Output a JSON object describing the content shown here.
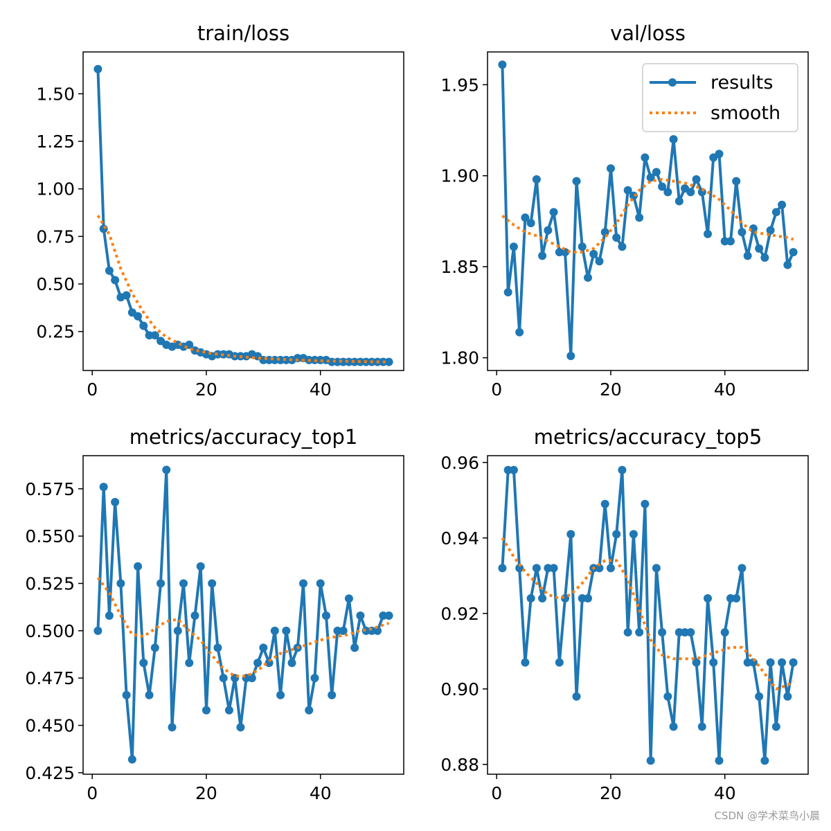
{
  "colors": {
    "results": "#1f77b4",
    "smooth": "#ff7f0e"
  },
  "legend": {
    "results": "results",
    "smooth": "smooth"
  },
  "watermark": "CSDN @学术菜鸟小晨",
  "chart_data": [
    {
      "type": "line",
      "title": "train/loss",
      "xlim": [
        -1.6,
        54.6
      ],
      "ylim": [
        0.045,
        1.72
      ],
      "xticks": [
        0,
        20,
        40
      ],
      "yticks": [
        0.25,
        0.5,
        0.75,
        1.0,
        1.25,
        1.5
      ],
      "ytick_labels": [
        "0.25",
        "0.50",
        "0.75",
        "1.00",
        "1.25",
        "1.50"
      ],
      "legend": false,
      "series": [
        {
          "name": "results",
          "x": [
            1,
            2,
            3,
            4,
            5,
            6,
            7,
            8,
            9,
            10,
            11,
            12,
            13,
            14,
            15,
            16,
            17,
            18,
            19,
            20,
            21,
            22,
            23,
            24,
            25,
            26,
            27,
            28,
            29,
            30,
            31,
            32,
            33,
            34,
            35,
            36,
            37,
            38,
            39,
            40,
            41,
            42,
            43,
            44,
            45,
            46,
            47,
            48,
            49,
            50,
            51,
            52
          ],
          "values": [
            1.63,
            0.79,
            0.57,
            0.52,
            0.43,
            0.44,
            0.35,
            0.33,
            0.28,
            0.23,
            0.23,
            0.2,
            0.18,
            0.17,
            0.18,
            0.17,
            0.18,
            0.15,
            0.14,
            0.13,
            0.12,
            0.13,
            0.13,
            0.13,
            0.12,
            0.12,
            0.12,
            0.13,
            0.12,
            0.1,
            0.1,
            0.1,
            0.1,
            0.1,
            0.1,
            0.11,
            0.11,
            0.1,
            0.1,
            0.1,
            0.1,
            0.09,
            0.09,
            0.09,
            0.09,
            0.09,
            0.09,
            0.09,
            0.09,
            0.09,
            0.09,
            0.09
          ]
        },
        {
          "name": "smooth",
          "x": [
            1,
            3,
            5,
            7,
            9,
            11,
            13,
            15,
            17,
            19,
            21,
            23,
            25,
            27,
            29,
            31,
            33,
            35,
            37,
            39,
            41,
            43,
            45,
            47,
            49,
            51,
            52
          ],
          "values": [
            0.86,
            0.76,
            0.58,
            0.45,
            0.35,
            0.27,
            0.22,
            0.19,
            0.16,
            0.145,
            0.135,
            0.127,
            0.12,
            0.115,
            0.11,
            0.107,
            0.104,
            0.101,
            0.099,
            0.097,
            0.095,
            0.094,
            0.093,
            0.092,
            0.091,
            0.09,
            0.09
          ]
        }
      ]
    },
    {
      "type": "line",
      "title": "val/loss",
      "xlim": [
        -1.6,
        54.6
      ],
      "ylim": [
        1.793,
        1.968
      ],
      "xticks": [
        0,
        20,
        40
      ],
      "yticks": [
        1.8,
        1.85,
        1.9,
        1.95
      ],
      "ytick_labels": [
        "1.80",
        "1.85",
        "1.90",
        "1.95"
      ],
      "legend": true,
      "series": [
        {
          "name": "results",
          "x": [
            1,
            2,
            3,
            4,
            5,
            6,
            7,
            8,
            9,
            10,
            11,
            12,
            13,
            14,
            15,
            16,
            17,
            18,
            19,
            20,
            21,
            22,
            23,
            24,
            25,
            26,
            27,
            28,
            29,
            30,
            31,
            32,
            33,
            34,
            35,
            36,
            37,
            38,
            39,
            40,
            41,
            42,
            43,
            44,
            45,
            46,
            47,
            48,
            49,
            50,
            51,
            52
          ],
          "values": [
            1.961,
            1.836,
            1.861,
            1.814,
            1.877,
            1.874,
            1.898,
            1.856,
            1.87,
            1.88,
            1.858,
            1.858,
            1.801,
            1.897,
            1.861,
            1.844,
            1.857,
            1.853,
            1.869,
            1.904,
            1.866,
            1.861,
            1.892,
            1.889,
            1.877,
            1.91,
            1.899,
            1.902,
            1.894,
            1.891,
            1.92,
            1.886,
            1.893,
            1.891,
            1.898,
            1.891,
            1.868,
            1.91,
            1.912,
            1.864,
            1.864,
            1.897,
            1.869,
            1.856,
            1.871,
            1.86,
            1.855,
            1.87,
            1.88,
            1.884,
            1.851,
            1.858
          ]
        },
        {
          "name": "smooth",
          "x": [
            1,
            3,
            5,
            7,
            9,
            11,
            13,
            15,
            17,
            19,
            21,
            23,
            25,
            27,
            29,
            31,
            33,
            35,
            37,
            39,
            41,
            43,
            45,
            47,
            49,
            51,
            52
          ],
          "values": [
            1.878,
            1.873,
            1.869,
            1.867,
            1.864,
            1.861,
            1.858,
            1.858,
            1.86,
            1.866,
            1.874,
            1.884,
            1.892,
            1.897,
            1.898,
            1.897,
            1.896,
            1.894,
            1.891,
            1.887,
            1.881,
            1.874,
            1.869,
            1.868,
            1.867,
            1.866,
            1.865
          ]
        }
      ]
    },
    {
      "type": "line",
      "title": "metrics/accuracy_top1",
      "xlim": [
        -1.6,
        54.6
      ],
      "ylim": [
        0.4242,
        0.5925
      ],
      "xticks": [
        0,
        20,
        40
      ],
      "yticks": [
        0.425,
        0.45,
        0.475,
        0.5,
        0.525,
        0.55,
        0.575
      ],
      "ytick_labels": [
        "0.425",
        "0.450",
        "0.475",
        "0.500",
        "0.525",
        "0.550",
        "0.575"
      ],
      "legend": false,
      "series": [
        {
          "name": "results",
          "x": [
            1,
            2,
            3,
            4,
            5,
            6,
            7,
            8,
            9,
            10,
            11,
            12,
            13,
            14,
            15,
            16,
            17,
            18,
            19,
            20,
            21,
            22,
            23,
            24,
            25,
            26,
            27,
            28,
            29,
            30,
            31,
            32,
            33,
            34,
            35,
            36,
            37,
            38,
            39,
            40,
            41,
            42,
            43,
            44,
            45,
            46,
            47,
            48,
            49,
            50,
            51,
            52
          ],
          "values": [
            0.5,
            0.576,
            0.508,
            0.568,
            0.525,
            0.466,
            0.432,
            0.534,
            0.483,
            0.466,
            0.491,
            0.525,
            0.585,
            0.449,
            0.5,
            0.525,
            0.483,
            0.508,
            0.534,
            0.458,
            0.525,
            0.491,
            0.475,
            0.458,
            0.475,
            0.449,
            0.475,
            0.475,
            0.483,
            0.491,
            0.483,
            0.5,
            0.466,
            0.5,
            0.483,
            0.491,
            0.525,
            0.458,
            0.475,
            0.525,
            0.508,
            0.466,
            0.5,
            0.5,
            0.517,
            0.491,
            0.508,
            0.5,
            0.5,
            0.5,
            0.508,
            0.508
          ]
        },
        {
          "name": "smooth",
          "x": [
            1,
            3,
            5,
            7,
            9,
            11,
            13,
            15,
            17,
            19,
            21,
            23,
            25,
            27,
            29,
            31,
            33,
            35,
            37,
            39,
            41,
            43,
            45,
            47,
            49,
            51,
            52
          ],
          "values": [
            0.528,
            0.52,
            0.508,
            0.498,
            0.497,
            0.501,
            0.505,
            0.506,
            0.5,
            0.495,
            0.487,
            0.48,
            0.476,
            0.476,
            0.479,
            0.484,
            0.488,
            0.49,
            0.492,
            0.494,
            0.496,
            0.497,
            0.498,
            0.5,
            0.501,
            0.503,
            0.504
          ]
        }
      ]
    },
    {
      "type": "line",
      "title": "metrics/accuracy_top5",
      "xlim": [
        -1.6,
        54.6
      ],
      "ylim": [
        0.8774,
        0.9618
      ],
      "xticks": [
        0,
        20,
        40
      ],
      "yticks": [
        0.88,
        0.9,
        0.92,
        0.94,
        0.96
      ],
      "ytick_labels": [
        "0.88",
        "0.90",
        "0.92",
        "0.94",
        "0.96"
      ],
      "legend": false,
      "series": [
        {
          "name": "results",
          "x": [
            1,
            2,
            3,
            4,
            5,
            6,
            7,
            8,
            9,
            10,
            11,
            12,
            13,
            14,
            15,
            16,
            17,
            18,
            19,
            20,
            21,
            22,
            23,
            24,
            25,
            26,
            27,
            28,
            29,
            30,
            31,
            32,
            33,
            34,
            35,
            36,
            37,
            38,
            39,
            40,
            41,
            42,
            43,
            44,
            45,
            46,
            47,
            48,
            49,
            50,
            51,
            52
          ],
          "values": [
            0.932,
            0.958,
            0.958,
            0.932,
            0.907,
            0.924,
            0.932,
            0.924,
            0.932,
            0.932,
            0.907,
            0.924,
            0.941,
            0.898,
            0.924,
            0.924,
            0.932,
            0.932,
            0.949,
            0.932,
            0.941,
            0.958,
            0.915,
            0.941,
            0.915,
            0.949,
            0.881,
            0.932,
            0.915,
            0.898,
            0.89,
            0.915,
            0.915,
            0.915,
            0.907,
            0.89,
            0.924,
            0.907,
            0.881,
            0.915,
            0.924,
            0.924,
            0.932,
            0.907,
            0.907,
            0.898,
            0.881,
            0.907,
            0.89,
            0.907,
            0.898,
            0.907
          ]
        },
        {
          "name": "smooth",
          "x": [
            1,
            3,
            5,
            7,
            9,
            11,
            13,
            15,
            17,
            19,
            21,
            23,
            25,
            27,
            29,
            31,
            33,
            35,
            37,
            39,
            41,
            43,
            45,
            47,
            49,
            51,
            52
          ],
          "values": [
            0.94,
            0.935,
            0.931,
            0.928,
            0.925,
            0.924,
            0.925,
            0.928,
            0.932,
            0.934,
            0.934,
            0.929,
            0.921,
            0.913,
            0.909,
            0.908,
            0.908,
            0.908,
            0.909,
            0.91,
            0.911,
            0.911,
            0.908,
            0.904,
            0.9,
            0.901,
            0.902
          ]
        }
      ]
    }
  ]
}
